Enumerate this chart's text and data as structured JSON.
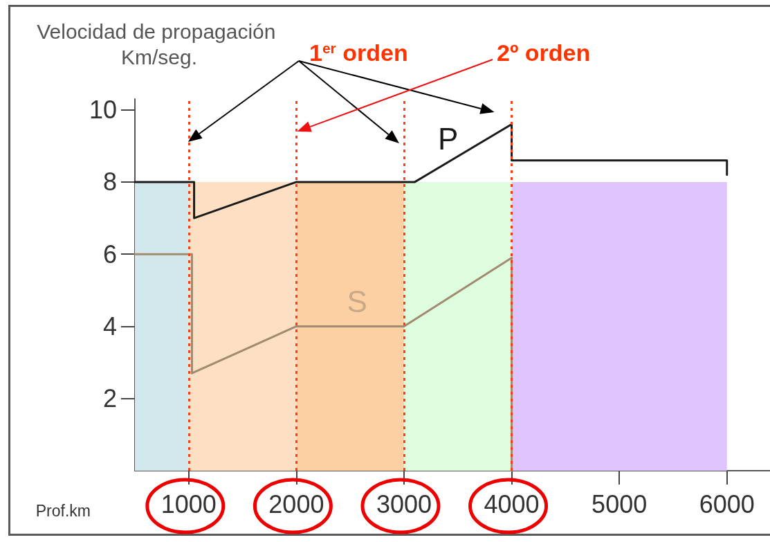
{
  "chart_data": {
    "type": "line",
    "xlabel": "Prof.km",
    "ylabel": "Velocidad de propagación Km/seg.",
    "annotations": [
      "1$^{er}$ orden",
      "2º orden"
    ],
    "xlim": [
      500,
      6400
    ],
    "xticks": [
      1000,
      2000,
      3000,
      4000,
      5000,
      6000
    ],
    "ylim": [
      0,
      10.3
    ],
    "yticks": [
      2,
      4,
      6,
      8,
      10
    ],
    "grid": false,
    "legend": false,
    "marker": "none",
    "line_style": "solid",
    "series": [
      {
        "name": "P",
        "color": "#1a1a1a",
        "x": [
          500,
          1050,
          1050,
          2000,
          3000,
          3100,
          4000,
          4000,
          6000,
          6000
        ],
        "values": [
          8,
          8,
          7,
          8,
          8,
          8,
          9.6,
          8.6,
          8.6,
          8.2
        ]
      },
      {
        "name": "S",
        "color": "#a08a70",
        "x": [
          500,
          1030,
          1030,
          2000,
          3000,
          4000,
          4000
        ],
        "values": [
          6,
          6,
          2.7,
          4,
          4,
          5.9,
          0
        ]
      },
      {
        "type": "histogram",
        "bins": [
          500,
          1000,
          2000,
          3000,
          4000,
          6000
        ],
        "values": [
          8,
          8,
          8,
          8,
          8
        ],
        "colors": [
          "#d2e8ec",
          "#fde0c3",
          "#fdd0a3",
          "#defcde",
          "#dfc3fd"
        ]
      }
    ],
    "ref_lines": [
      {
        "axis": "x",
        "value": 1000,
        "color": "#ff3c14",
        "line_style": "dotted"
      },
      {
        "axis": "x",
        "value": 2000,
        "color": "#ff3c14",
        "line_style": "dotted"
      },
      {
        "axis": "x",
        "value": 3000,
        "color": "#ff3c14",
        "line_style": "dotted"
      },
      {
        "axis": "x",
        "value": 4000,
        "color": "#ff3c14",
        "line_style": "dotted"
      }
    ]
  }
}
